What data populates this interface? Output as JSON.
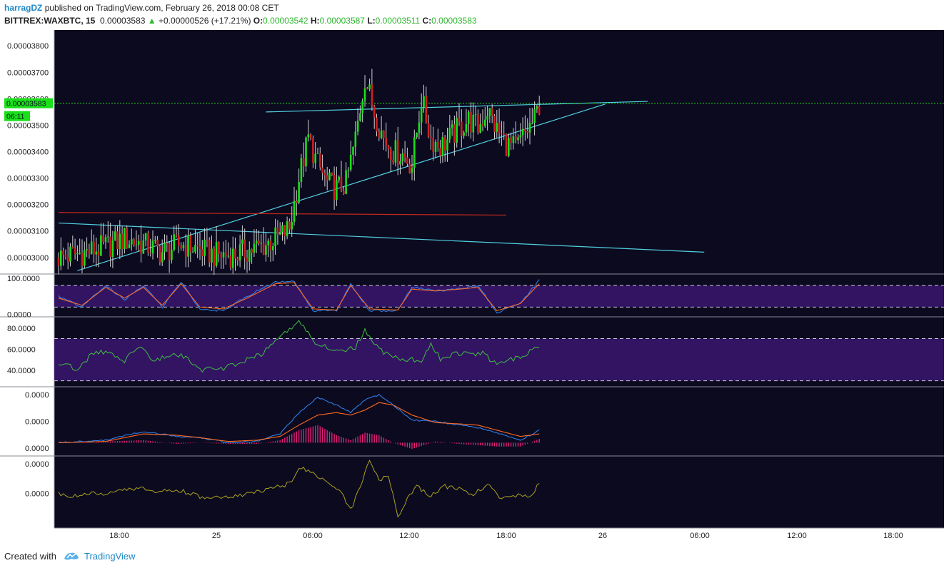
{
  "header": {
    "author": "harragDZ",
    "published": "published on TradingView.com, February 26, 2018 00:08 CET",
    "symbol": "BITTREX:WAXBTC, 15",
    "last": "0.00003583",
    "change": "+0.00000526 (+17.21%)",
    "o_label": "O:",
    "o_value": "0.00003542",
    "h_label": "H:",
    "h_value": "0.00003587",
    "l_label": "L:",
    "l_value": "0.00003511",
    "c_label": "C:",
    "c_value": "0.00003583"
  },
  "price_badge": {
    "value": "0.00003583",
    "timer": "06:11"
  },
  "footer": {
    "created_with": "Created with",
    "brand": "TradingView"
  },
  "colors": {
    "background": "#0c0a1f",
    "up": "#19e019",
    "down": "#d01f1f",
    "trendline": "#4fd0e0",
    "support": "#c0281a",
    "current_price": "#19e019",
    "stoch_k": "#2f7fe8",
    "stoch_d": "#ff6a1f",
    "rsi": "#3fbf3f",
    "macd": "#2f7fe8",
    "signal": "#ff6a1f",
    "hist": "#e01f7a",
    "momentum": "#a9a21f",
    "band": "#3a1670"
  },
  "chart_data": [
    {
      "type": "candlestick",
      "title": "BITTREX:WAXBTC, 15",
      "x_ticks": [
        "18:00",
        "25",
        "06:00",
        "12:00",
        "18:00",
        "26",
        "06:00",
        "12:00",
        "18:00"
      ],
      "y_ticks": [
        "0.00003800",
        "0.00003700",
        "0.00003600",
        "0.00003500",
        "0.00003400",
        "0.00003300",
        "0.00003200",
        "0.00003100",
        "0.00003000"
      ],
      "ylim": [
        2.94e-05,
        3.86e-05
      ],
      "current_price": 3.583e-05,
      "ohlc_waypoints": [
        [
          0,
          3e-05
        ],
        [
          12,
          3.02e-05
        ],
        [
          20,
          3.04e-05
        ],
        [
          28,
          3.07e-05
        ],
        [
          36,
          3.05e-05
        ],
        [
          44,
          3.02e-05
        ],
        [
          52,
          3.05e-05
        ],
        [
          60,
          3.03e-05
        ],
        [
          66,
          3.01e-05
        ],
        [
          74,
          3.01e-05
        ],
        [
          82,
          3.03e-05
        ],
        [
          88,
          3.05e-05
        ],
        [
          94,
          3.08e-05
        ],
        [
          98,
          3.11e-05
        ],
        [
          102,
          3.3e-05
        ],
        [
          106,
          3.45e-05
        ],
        [
          110,
          3.35e-05
        ],
        [
          114,
          3.28e-05
        ],
        [
          118,
          3.26e-05
        ],
        [
          122,
          3.28e-05
        ],
        [
          126,
          3.45e-05
        ],
        [
          130,
          3.68e-05
        ],
        [
          134,
          3.55e-05
        ],
        [
          138,
          3.45e-05
        ],
        [
          142,
          3.4e-05
        ],
        [
          146,
          3.39e-05
        ],
        [
          150,
          3.35e-05
        ],
        [
          154,
          3.6e-05
        ],
        [
          158,
          3.45e-05
        ],
        [
          162,
          3.42e-05
        ],
        [
          166,
          3.45e-05
        ],
        [
          170,
          3.49e-05
        ],
        [
          174,
          3.52e-05
        ],
        [
          178,
          3.49e-05
        ],
        [
          182,
          3.56e-05
        ],
        [
          186,
          3.48e-05
        ],
        [
          190,
          3.43e-05
        ],
        [
          194,
          3.41e-05
        ],
        [
          198,
          3.47e-05
        ],
        [
          202,
          3.52e-05
        ],
        [
          204,
          3.58e-05
        ]
      ],
      "drawings": [
        {
          "name": "resistance",
          "from": [
            88,
            3.55e-05
          ],
          "to": [
            250,
            3.59e-05
          ]
        },
        {
          "name": "rising-support",
          "from": [
            8,
            2.95e-05
          ],
          "to": [
            232,
            3.58e-05
          ]
        },
        {
          "name": "falling-line",
          "from": [
            0,
            3.13e-05
          ],
          "to": [
            274,
            3.02e-05
          ]
        },
        {
          "name": "horizontal-support",
          "from": [
            0,
            3.17e-05
          ],
          "to": [
            190,
            3.16e-05
          ]
        }
      ]
    },
    {
      "type": "line",
      "name": "stochastic",
      "y_ticks": [
        "100.0000",
        "0.0000"
      ],
      "ylim": [
        -5,
        110
      ],
      "band": [
        20,
        80
      ],
      "series": [
        {
          "name": "K",
          "waypoints": [
            [
              0,
              50
            ],
            [
              10,
              20
            ],
            [
              20,
              80
            ],
            [
              28,
              40
            ],
            [
              36,
              80
            ],
            [
              44,
              20
            ],
            [
              52,
              90
            ],
            [
              60,
              15
            ],
            [
              70,
              10
            ],
            [
              80,
              50
            ],
            [
              92,
              90
            ],
            [
              100,
              90
            ],
            [
              108,
              10
            ],
            [
              118,
              10
            ],
            [
              124,
              85
            ],
            [
              132,
              10
            ],
            [
              144,
              10
            ],
            [
              150,
              75
            ],
            [
              160,
              65
            ],
            [
              170,
              70
            ],
            [
              178,
              80
            ],
            [
              186,
              5
            ],
            [
              196,
              30
            ],
            [
              204,
              95
            ]
          ]
        },
        {
          "name": "D",
          "waypoints": [
            [
              0,
              45
            ],
            [
              10,
              25
            ],
            [
              20,
              75
            ],
            [
              28,
              45
            ],
            [
              36,
              75
            ],
            [
              44,
              25
            ],
            [
              52,
              85
            ],
            [
              60,
              20
            ],
            [
              70,
              15
            ],
            [
              80,
              45
            ],
            [
              92,
              85
            ],
            [
              100,
              88
            ],
            [
              108,
              15
            ],
            [
              118,
              12
            ],
            [
              124,
              80
            ],
            [
              132,
              15
            ],
            [
              144,
              12
            ],
            [
              150,
              70
            ],
            [
              160,
              65
            ],
            [
              170,
              70
            ],
            [
              178,
              75
            ],
            [
              186,
              10
            ],
            [
              196,
              30
            ],
            [
              204,
              85
            ]
          ]
        }
      ]
    },
    {
      "type": "line",
      "name": "rsi",
      "y_ticks": [
        "80.0000",
        "60.0000",
        "40.0000"
      ],
      "ylim": [
        25,
        90
      ],
      "band": [
        30,
        70
      ],
      "series": [
        {
          "name": "RSI",
          "waypoints": [
            [
              0,
              47
            ],
            [
              8,
              41
            ],
            [
              14,
              55
            ],
            [
              20,
              58
            ],
            [
              28,
              48
            ],
            [
              34,
              64
            ],
            [
              40,
              50
            ],
            [
              52,
              55
            ],
            [
              60,
              40
            ],
            [
              70,
              42
            ],
            [
              78,
              48
            ],
            [
              86,
              55
            ],
            [
              92,
              68
            ],
            [
              98,
              78
            ],
            [
              102,
              88
            ],
            [
              108,
              68
            ],
            [
              114,
              62
            ],
            [
              120,
              58
            ],
            [
              126,
              62
            ],
            [
              130,
              78
            ],
            [
              136,
              60
            ],
            [
              142,
              52
            ],
            [
              148,
              50
            ],
            [
              154,
              50
            ],
            [
              158,
              66
            ],
            [
              162,
              51
            ],
            [
              168,
              56
            ],
            [
              174,
              55
            ],
            [
              180,
              56
            ],
            [
              186,
              45
            ],
            [
              192,
              50
            ],
            [
              198,
              55
            ],
            [
              204,
              62
            ]
          ]
        }
      ]
    },
    {
      "type": "line",
      "name": "macd",
      "y_ticks": [
        "0.0000",
        "0.0000",
        "0.0000"
      ],
      "ylim": [
        -0.5,
        2.2
      ],
      "series": [
        {
          "name": "MACD",
          "waypoints": [
            [
              0,
              0.0
            ],
            [
              20,
              0.1
            ],
            [
              36,
              0.45
            ],
            [
              50,
              0.25
            ],
            [
              60,
              0.2
            ],
            [
              72,
              0.0
            ],
            [
              84,
              0.05
            ],
            [
              94,
              0.35
            ],
            [
              102,
              1.2
            ],
            [
              110,
              1.8
            ],
            [
              118,
              1.5
            ],
            [
              124,
              1.2
            ],
            [
              130,
              1.7
            ],
            [
              136,
              1.9
            ],
            [
              142,
              1.5
            ],
            [
              150,
              0.9
            ],
            [
              160,
              0.85
            ],
            [
              170,
              0.7
            ],
            [
              178,
              0.6
            ],
            [
              186,
              0.4
            ],
            [
              196,
              0.1
            ],
            [
              204,
              0.5
            ]
          ]
        },
        {
          "name": "Signal",
          "waypoints": [
            [
              0,
              0.0
            ],
            [
              20,
              0.05
            ],
            [
              36,
              0.35
            ],
            [
              50,
              0.3
            ],
            [
              60,
              0.2
            ],
            [
              72,
              0.05
            ],
            [
              84,
              0.1
            ],
            [
              94,
              0.25
            ],
            [
              102,
              0.7
            ],
            [
              110,
              1.1
            ],
            [
              118,
              1.2
            ],
            [
              124,
              1.1
            ],
            [
              130,
              1.3
            ],
            [
              136,
              1.6
            ],
            [
              142,
              1.5
            ],
            [
              150,
              1.1
            ],
            [
              160,
              0.8
            ],
            [
              170,
              0.75
            ],
            [
              178,
              0.7
            ],
            [
              186,
              0.5
            ],
            [
              196,
              0.25
            ],
            [
              204,
              0.35
            ]
          ]
        },
        {
          "name": "Histogram",
          "waypoints": [
            [
              0,
              0.0
            ],
            [
              20,
              0.05
            ],
            [
              36,
              0.1
            ],
            [
              50,
              -0.05
            ],
            [
              60,
              0.0
            ],
            [
              72,
              -0.05
            ],
            [
              84,
              -0.05
            ],
            [
              94,
              0.1
            ],
            [
              102,
              0.5
            ],
            [
              110,
              0.7
            ],
            [
              118,
              0.3
            ],
            [
              124,
              0.1
            ],
            [
              130,
              0.4
            ],
            [
              136,
              0.3
            ],
            [
              142,
              0.0
            ],
            [
              150,
              -0.25
            ],
            [
              160,
              0.05
            ],
            [
              170,
              -0.05
            ],
            [
              178,
              -0.1
            ],
            [
              186,
              -0.15
            ],
            [
              196,
              -0.15
            ],
            [
              204,
              0.15
            ]
          ]
        }
      ]
    },
    {
      "type": "line",
      "name": "momentum",
      "y_ticks": [
        "0.0000",
        "0.0000"
      ],
      "ylim": [
        -2.2,
        2.6
      ],
      "series": [
        {
          "name": "Momentum",
          "waypoints": [
            [
              0,
              0.1
            ],
            [
              8,
              -0.1
            ],
            [
              14,
              0.2
            ],
            [
              20,
              0.0
            ],
            [
              28,
              0.4
            ],
            [
              34,
              0.5
            ],
            [
              40,
              0.2
            ],
            [
              50,
              0.4
            ],
            [
              60,
              -0.1
            ],
            [
              70,
              -0.2
            ],
            [
              78,
              0.0
            ],
            [
              86,
              0.3
            ],
            [
              92,
              0.5
            ],
            [
              98,
              0.8
            ],
            [
              102,
              1.8
            ],
            [
              108,
              1.6
            ],
            [
              114,
              0.8
            ],
            [
              120,
              0.2
            ],
            [
              124,
              -1.0
            ],
            [
              128,
              0.6
            ],
            [
              132,
              2.3
            ],
            [
              136,
              1.0
            ],
            [
              140,
              1.4
            ],
            [
              144,
              -1.5
            ],
            [
              148,
              -0.2
            ],
            [
              152,
              0.6
            ],
            [
              158,
              0.0
            ],
            [
              164,
              0.6
            ],
            [
              170,
              0.4
            ],
            [
              176,
              0.0
            ],
            [
              182,
              0.8
            ],
            [
              188,
              -0.3
            ],
            [
              194,
              0.0
            ],
            [
              200,
              -0.1
            ],
            [
              204,
              0.8
            ]
          ]
        }
      ]
    }
  ]
}
